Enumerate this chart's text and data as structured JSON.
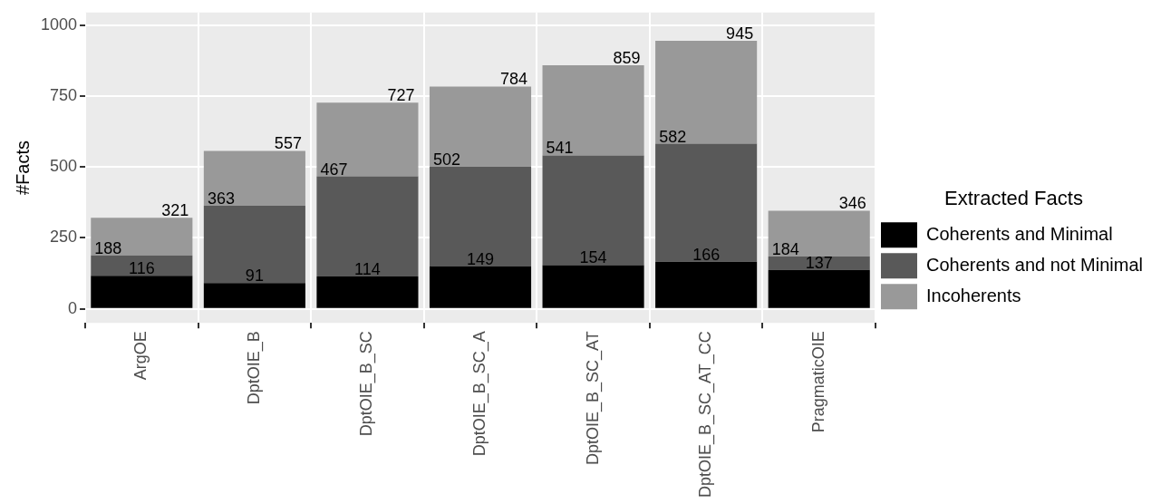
{
  "chart_data": {
    "type": "bar",
    "stacked": true,
    "ylabel": "#Facts",
    "legend_title": "Extracted Facts",
    "legend": "right",
    "grid": true,
    "categories": [
      "ArgOE",
      "DptOIE_B",
      "DptOIE_B_SC",
      "DptOIE_B_SC_A",
      "DptOIE_B_SC_AT",
      "DptOIE_B_SC_AT_CC",
      "PragmaticOIE"
    ],
    "ylim": [
      -50,
      1045
    ],
    "yticks": [
      0,
      250,
      500,
      750,
      1000
    ],
    "series": [
      {
        "name": "Coherents and Minimal",
        "color": "#000000",
        "values": [
          116,
          91,
          114,
          149,
          154,
          166,
          137
        ],
        "value_labels": [
          "116",
          "91",
          "114",
          "149",
          "154",
          "166",
          "137"
        ]
      },
      {
        "name": "Coherents and not Minimal",
        "color": "#595959",
        "values": [
          72,
          272,
          353,
          353,
          387,
          416,
          47
        ]
      },
      {
        "name": "Incoherents",
        "color": "#999999",
        "values": [
          133,
          194,
          260,
          282,
          318,
          363,
          162
        ]
      }
    ],
    "totals": [
      "321",
      "557",
      "727",
      "784",
      "859",
      "945",
      "346"
    ],
    "annotations": [
      {
        "text": "188",
        "x": "ArgOE",
        "y": 188
      },
      {
        "text": "363",
        "x": "DptOIE_B",
        "y": 363
      },
      {
        "text": "467",
        "x": "DptOIE_B_SC",
        "y": 467
      },
      {
        "text": "502",
        "x": "DptOIE_B_SC_A",
        "y": 502
      },
      {
        "text": "541",
        "x": "DptOIE_B_SC_AT",
        "y": 541
      },
      {
        "text": "582",
        "x": "DptOIE_B_SC_AT_CC",
        "y": 582
      },
      {
        "text": "184",
        "x": "PragmaticOIE",
        "y": 184
      }
    ]
  }
}
